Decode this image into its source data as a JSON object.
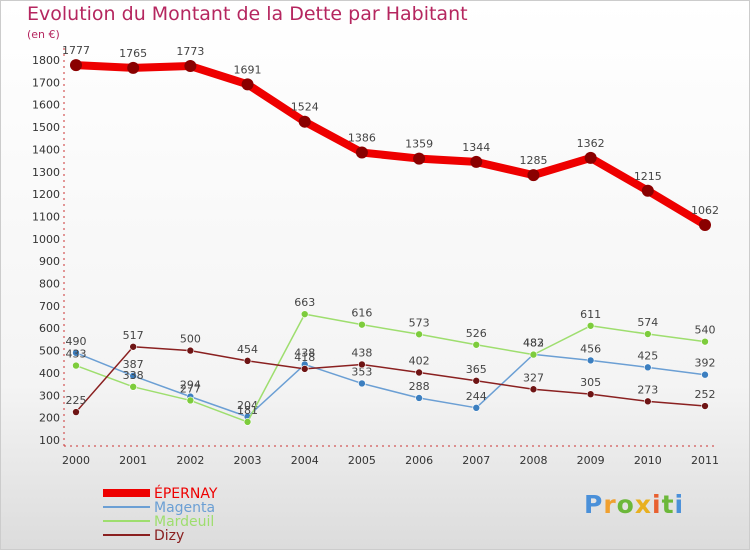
{
  "chart_data": {
    "type": "line",
    "title": "Evolution du Montant de la Dette par Habitant",
    "ylabel": "(en €)",
    "ylim": [
      100,
      1800
    ],
    "yticks": [
      100,
      200,
      300,
      400,
      500,
      600,
      700,
      800,
      900,
      1000,
      1100,
      1200,
      1300,
      1400,
      1500,
      1600,
      1700,
      1800
    ],
    "categories": [
      "2000",
      "2001",
      "2002",
      "2003",
      "2004",
      "2005",
      "2006",
      "2007",
      "2008",
      "2009",
      "2010",
      "2011"
    ],
    "grid": false,
    "legend_position": "bottom-left",
    "series": [
      {
        "name": "ÉPERNAY",
        "color": "#ee0000",
        "dot": "#8a0000",
        "width": 8,
        "values": [
          1777,
          1765,
          1773,
          1691,
          1524,
          1386,
          1359,
          1344,
          1285,
          1362,
          1215,
          1062
        ],
        "labels": [
          "1777",
          "1765",
          "1773",
          "1691",
          "1524",
          "1386",
          "1359",
          "1344",
          "1285",
          "1362",
          "1215",
          "1062"
        ]
      },
      {
        "name": "Magenta",
        "color": "#6b9fd4",
        "dot": "#3c7fc0",
        "width": 1.5,
        "values": [
          490,
          387,
          294,
          204,
          438,
          353,
          288,
          244,
          483,
          456,
          425,
          392
        ],
        "labels": [
          "490",
          "387",
          "294",
          "204",
          "438",
          "353",
          "288",
          "244",
          "483",
          "456",
          "425",
          "392"
        ]
      },
      {
        "name": "Mardeuil",
        "color": "#9ede6e",
        "dot": "#7dcc3c",
        "width": 1.5,
        "values": [
          433,
          338,
          277,
          181,
          663,
          616,
          573,
          526,
          482,
          611,
          574,
          540
        ],
        "labels": [
          "433",
          "338",
          "277",
          "181",
          "663",
          "616",
          "573",
          "526",
          "482",
          "611",
          "574",
          "540"
        ]
      },
      {
        "name": "Dizy",
        "color": "#8a2020",
        "dot": "#6e1414",
        "width": 1.5,
        "values": [
          225,
          517,
          500,
          454,
          418,
          438,
          402,
          365,
          327,
          305,
          273,
          252
        ],
        "labels": [
          "225",
          "517",
          "500",
          "454",
          "418",
          "438",
          "402",
          "365",
          "327",
          "305",
          "273",
          "252"
        ]
      }
    ]
  },
  "logo": {
    "letters": [
      "P",
      "r",
      "o",
      "x",
      "i",
      "t",
      "i"
    ],
    "colors": [
      "#4a90d9",
      "#f0a030",
      "#6cb83a",
      "#e8b020",
      "#e86030",
      "#6cb83a",
      "#4a90d9"
    ]
  }
}
